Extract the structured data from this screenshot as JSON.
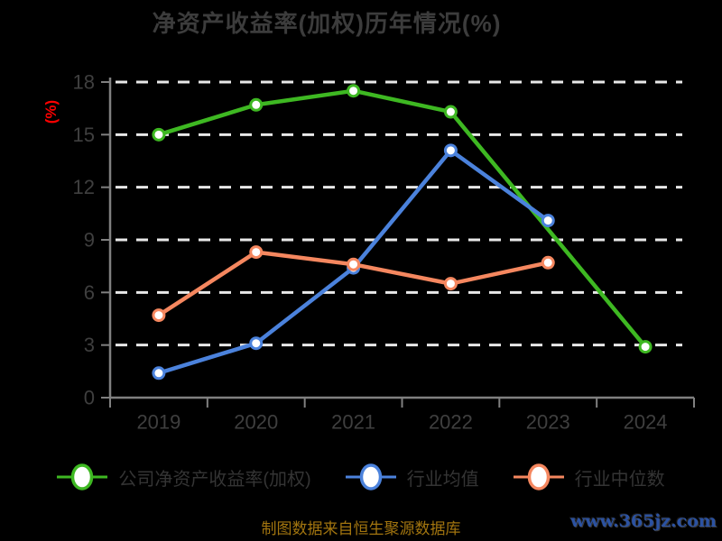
{
  "title": "净资产收益率(加权)历年情况(%)",
  "y_axis_name": "(%)",
  "footer": {
    "source_note": "制图数据来自恒生聚源数据库",
    "watermark": "www.365jz.com"
  },
  "colors": {
    "background": "#000000",
    "title_text": "#3c3c3c",
    "tick_text": "#3f3f3f",
    "axis": "#808080",
    "gridline": "#e8e8e8",
    "y_axis_name": "#ff0000",
    "series_company": "#3eb822",
    "series_mean": "#4b82dc",
    "series_median": "#f5875f",
    "source_note": "#a2750f",
    "watermark": "#2b52a2"
  },
  "legend": {
    "items": [
      {
        "label": "公司净资产收益率(加权)",
        "color": "#3eb822",
        "key": "company-roe"
      },
      {
        "label": "行业均值",
        "color": "#4b82dc",
        "key": "industry-mean"
      },
      {
        "label": "行业中位数",
        "color": "#f5875f",
        "key": "industry-median"
      }
    ]
  },
  "chart_data": {
    "type": "line",
    "title": "净资产收益率(加权)历年情况(%)",
    "xlabel": "",
    "ylabel": "(%)",
    "categories": [
      "2019",
      "2020",
      "2021",
      "2022",
      "2023",
      "2024"
    ],
    "ylim": [
      0,
      18
    ],
    "y_ticks": [
      0,
      3,
      6,
      9,
      12,
      15,
      18
    ],
    "grid": "horizontal-dashed-white",
    "legend_position": "bottom",
    "marker": "open-circle",
    "connect_nulls": true,
    "series": [
      {
        "name": "公司净资产收益率(加权)",
        "color": "#3eb822",
        "values": [
          15.0,
          16.7,
          17.5,
          16.3,
          null,
          2.9
        ]
      },
      {
        "name": "行业均值",
        "color": "#4b82dc",
        "values": [
          1.4,
          3.1,
          7.4,
          14.1,
          10.1,
          null
        ]
      },
      {
        "name": "行业中位数",
        "color": "#f5875f",
        "values": [
          4.7,
          8.3,
          7.6,
          6.5,
          7.7,
          null
        ]
      }
    ]
  }
}
